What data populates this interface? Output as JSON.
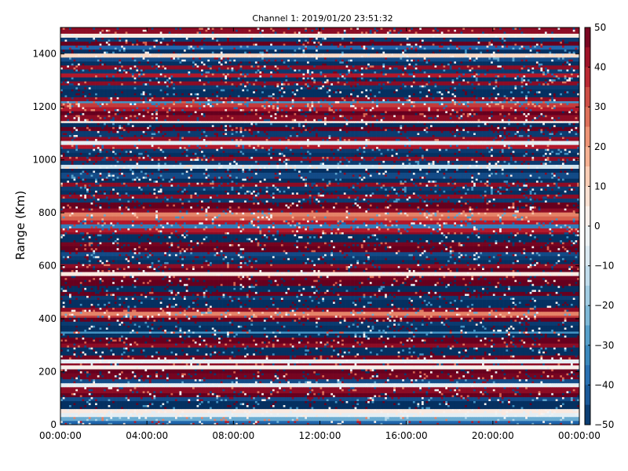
{
  "chart_data": {
    "type": "heatmap",
    "title": "Channel 1: 2019/01/20 23:51:32",
    "xlabel": "",
    "ylabel": "Range (Km)",
    "x_ticks": [
      "00:00:00",
      "04:00:00",
      "08:00:00",
      "12:00:00",
      "16:00:00",
      "20:00:00",
      "00:00:00"
    ],
    "x_range_hours": [
      0,
      24
    ],
    "y_ticks": [
      0,
      200,
      400,
      600,
      800,
      1000,
      1200,
      1400
    ],
    "ylim": [
      0,
      1500
    ],
    "colorbar": {
      "colormap": "RdBu_r",
      "range": [
        -50,
        50
      ],
      "ticks": [
        50,
        40,
        30,
        20,
        10,
        0,
        -10,
        -20,
        -30,
        -40,
        -50
      ],
      "placement": "right"
    },
    "colors": {
      "low": "#053061",
      "mid": "#f7f7f7",
      "high": "#67001f"
    },
    "row_bin_km": 7.5,
    "column_bin_hours": 0.1,
    "row_bands_km_value": [
      [
        0,
        15,
        -40
      ],
      [
        15,
        30,
        -25
      ],
      [
        30,
        45,
        -5
      ],
      [
        45,
        60,
        5
      ],
      [
        60,
        90,
        -50
      ],
      [
        90,
        105,
        -45
      ],
      [
        105,
        120,
        50
      ],
      [
        120,
        140,
        45
      ],
      [
        140,
        160,
        -5
      ],
      [
        160,
        170,
        -45
      ],
      [
        170,
        195,
        48
      ],
      [
        195,
        210,
        50
      ],
      [
        210,
        225,
        3
      ],
      [
        225,
        235,
        45
      ],
      [
        235,
        245,
        -5
      ],
      [
        245,
        265,
        48
      ],
      [
        265,
        290,
        -50
      ],
      [
        290,
        310,
        45
      ],
      [
        310,
        330,
        50
      ],
      [
        330,
        345,
        -50
      ],
      [
        345,
        355,
        -30
      ],
      [
        355,
        375,
        -50
      ],
      [
        375,
        390,
        -48
      ],
      [
        390,
        405,
        50
      ],
      [
        405,
        415,
        35
      ],
      [
        415,
        425,
        25
      ],
      [
        425,
        440,
        45
      ],
      [
        440,
        470,
        -50
      ],
      [
        470,
        490,
        -48
      ],
      [
        490,
        505,
        50
      ],
      [
        505,
        525,
        -50
      ],
      [
        525,
        545,
        50
      ],
      [
        545,
        560,
        48
      ],
      [
        560,
        575,
        5
      ],
      [
        575,
        590,
        50
      ],
      [
        590,
        605,
        45
      ],
      [
        605,
        620,
        -50
      ],
      [
        620,
        640,
        -48
      ],
      [
        640,
        655,
        -45
      ],
      [
        655,
        675,
        50
      ],
      [
        675,
        690,
        48
      ],
      [
        690,
        700,
        -50
      ],
      [
        700,
        720,
        -50
      ],
      [
        720,
        730,
        45
      ],
      [
        730,
        745,
        40
      ],
      [
        745,
        760,
        -35
      ],
      [
        760,
        775,
        40
      ],
      [
        775,
        790,
        30
      ],
      [
        790,
        805,
        25
      ],
      [
        805,
        815,
        45
      ],
      [
        815,
        840,
        50
      ],
      [
        840,
        855,
        -48
      ],
      [
        855,
        870,
        45
      ],
      [
        870,
        885,
        -50
      ],
      [
        885,
        900,
        -48
      ],
      [
        900,
        915,
        45
      ],
      [
        915,
        930,
        -50
      ],
      [
        930,
        950,
        -45
      ],
      [
        950,
        965,
        -50
      ],
      [
        965,
        980,
        -10
      ],
      [
        980,
        995,
        -48
      ],
      [
        995,
        1015,
        45
      ],
      [
        1015,
        1030,
        -50
      ],
      [
        1030,
        1045,
        -48
      ],
      [
        1045,
        1060,
        40
      ],
      [
        1060,
        1075,
        -5
      ],
      [
        1075,
        1090,
        45
      ],
      [
        1090,
        1110,
        -48
      ],
      [
        1110,
        1125,
        50
      ],
      [
        1125,
        1140,
        -50
      ],
      [
        1140,
        1150,
        5
      ],
      [
        1150,
        1170,
        45
      ],
      [
        1170,
        1185,
        50
      ],
      [
        1185,
        1200,
        40
      ],
      [
        1200,
        1215,
        35
      ],
      [
        1215,
        1225,
        -30
      ],
      [
        1225,
        1240,
        45
      ],
      [
        1240,
        1270,
        -50
      ],
      [
        1270,
        1285,
        -48
      ],
      [
        1285,
        1300,
        45
      ],
      [
        1300,
        1315,
        -50
      ],
      [
        1315,
        1330,
        40
      ],
      [
        1330,
        1345,
        -48
      ],
      [
        1345,
        1360,
        45
      ],
      [
        1360,
        1375,
        -50
      ],
      [
        1375,
        1390,
        -45
      ],
      [
        1390,
        1400,
        10
      ],
      [
        1400,
        1420,
        -50
      ],
      [
        1420,
        1435,
        -40
      ],
      [
        1435,
        1450,
        50
      ],
      [
        1450,
        1465,
        -48
      ],
      [
        1465,
        1480,
        5
      ],
      [
        1480,
        1500,
        45
      ]
    ]
  }
}
